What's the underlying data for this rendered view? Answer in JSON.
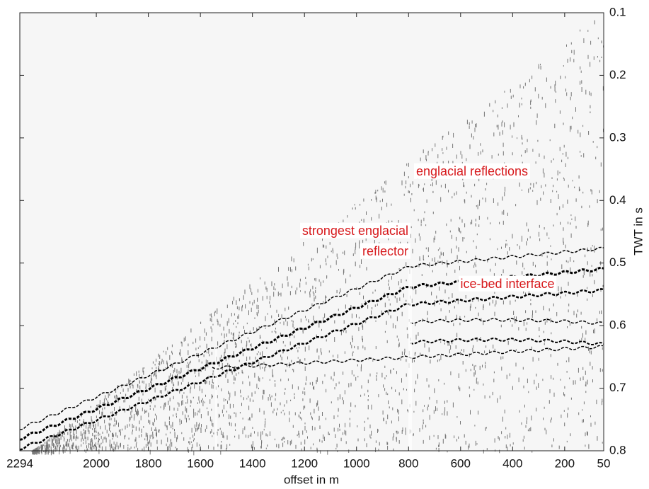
{
  "chart_data": {
    "type": "seismic",
    "xlabel": "offset in m",
    "ylabel": "TWT in s",
    "xlim": [
      2294,
      50
    ],
    "ylim": [
      0.8,
      0.1
    ],
    "xticks": [
      2294,
      2000,
      1800,
      1600,
      1400,
      1200,
      1000,
      800,
      600,
      400,
      200,
      50
    ],
    "yticks": [
      0.1,
      0.2,
      0.3,
      0.4,
      0.5,
      0.6,
      0.7,
      0.8
    ],
    "annotations": [
      "englacial reflections",
      "strongest englacial",
      "reflector",
      "ice-bed interface"
    ],
    "annotation_color": "#d7191c"
  }
}
